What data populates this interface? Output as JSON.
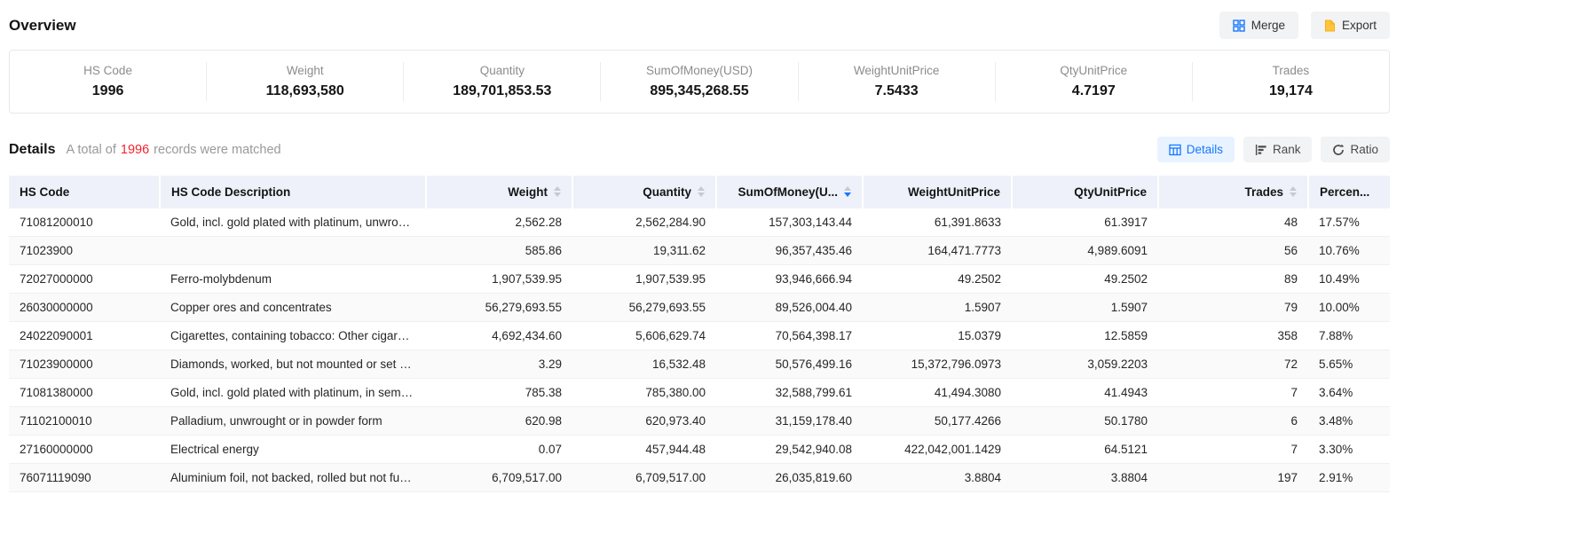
{
  "page": {
    "title": "Overview"
  },
  "toolbar": {
    "merge_label": "Merge",
    "export_label": "Export"
  },
  "summary": {
    "stats": [
      {
        "label": "HS Code",
        "value": "1996"
      },
      {
        "label": "Weight",
        "value": "118,693,580"
      },
      {
        "label": "Quantity",
        "value": "189,701,853.53"
      },
      {
        "label": "SumOfMoney(USD)",
        "value": "895,345,268.55"
      },
      {
        "label": "WeightUnitPrice",
        "value": "7.5433"
      },
      {
        "label": "QtyUnitPrice",
        "value": "4.7197"
      },
      {
        "label": "Trades",
        "value": "19,174"
      }
    ]
  },
  "details": {
    "title": "Details",
    "matched_prefix": "A total of",
    "matched_count": "1996",
    "matched_suffix": "records were matched",
    "views": [
      {
        "label": "Details",
        "icon": "table-icon",
        "active": true
      },
      {
        "label": "Rank",
        "icon": "rank-icon",
        "active": false
      },
      {
        "label": "Ratio",
        "icon": "ratio-icon",
        "active": false
      }
    ]
  },
  "table": {
    "columns": [
      {
        "label": "HS Code",
        "sortable": false,
        "align": "left"
      },
      {
        "label": "HS Code Description",
        "sortable": false,
        "align": "left"
      },
      {
        "label": "Weight",
        "sortable": true,
        "align": "right"
      },
      {
        "label": "Quantity",
        "sortable": true,
        "align": "right"
      },
      {
        "label": "SumOfMoney(U...",
        "sortable": true,
        "align": "right",
        "sorted": "desc"
      },
      {
        "label": "WeightUnitPrice",
        "sortable": false,
        "align": "right"
      },
      {
        "label": "QtyUnitPrice",
        "sortable": false,
        "align": "right"
      },
      {
        "label": "Trades",
        "sortable": true,
        "align": "right"
      },
      {
        "label": "Percen...",
        "sortable": false,
        "align": "left"
      }
    ],
    "rows": [
      [
        "71081200010",
        "Gold, incl. gold plated with platinum, unwrough...",
        "2,562.28",
        "2,562,284.90",
        "157,303,143.44",
        "61,391.8633",
        "61.3917",
        "48",
        "17.57%"
      ],
      [
        "71023900",
        "",
        "585.86",
        "19,311.62",
        "96,357,435.46",
        "164,471.7773",
        "4,989.6091",
        "56",
        "10.76%"
      ],
      [
        "72027000000",
        "Ferro-molybdenum",
        "1,907,539.95",
        "1,907,539.95",
        "93,946,666.94",
        "49.2502",
        "49.2502",
        "89",
        "10.49%"
      ],
      [
        "26030000000",
        "Copper ores and concentrates",
        "56,279,693.55",
        "56,279,693.55",
        "89,526,004.40",
        "1.5907",
        "1.5907",
        "79",
        "10.00%"
      ],
      [
        "24022090001",
        "Cigarettes, containing tobacco: Other cigarettes...",
        "4,692,434.60",
        "5,606,629.74",
        "70,564,398.17",
        "15.0379",
        "12.5859",
        "358",
        "7.88%"
      ],
      [
        "71023900000",
        "Diamonds, worked, but not mounted or set (ex...",
        "3.29",
        "16,532.48",
        "50,576,499.16",
        "15,372,796.0973",
        "3,059.2203",
        "72",
        "5.65%"
      ],
      [
        "71081380000",
        "Gold, incl. gold plated with platinum, in semi-m...",
        "785.38",
        "785,380.00",
        "32,588,799.61",
        "41,494.3080",
        "41.4943",
        "7",
        "3.64%"
      ],
      [
        "71102100010",
        "Palladium, unwrought or in powder form",
        "620.98",
        "620,973.40",
        "31,159,178.40",
        "50,177.4266",
        "50.1780",
        "6",
        "3.48%"
      ],
      [
        "27160000000",
        "Electrical energy",
        "0.07",
        "457,944.48",
        "29,542,940.08",
        "422,042,001.1429",
        "64.5121",
        "7",
        "3.30%"
      ],
      [
        "76071119090",
        "Aluminium foil, not backed, rolled but not furth...",
        "6,709,517.00",
        "6,709,517.00",
        "26,035,819.60",
        "3.8804",
        "3.8804",
        "197",
        "2.91%"
      ]
    ]
  },
  "colors": {
    "accent": "#1677ff",
    "count_red": "#f5222d",
    "table_header_bg": "#eef1f9",
    "row_stripe": "#fafafa",
    "active_view_bg": "#e8f3ff",
    "export_icon_yellow": "#faad14"
  }
}
